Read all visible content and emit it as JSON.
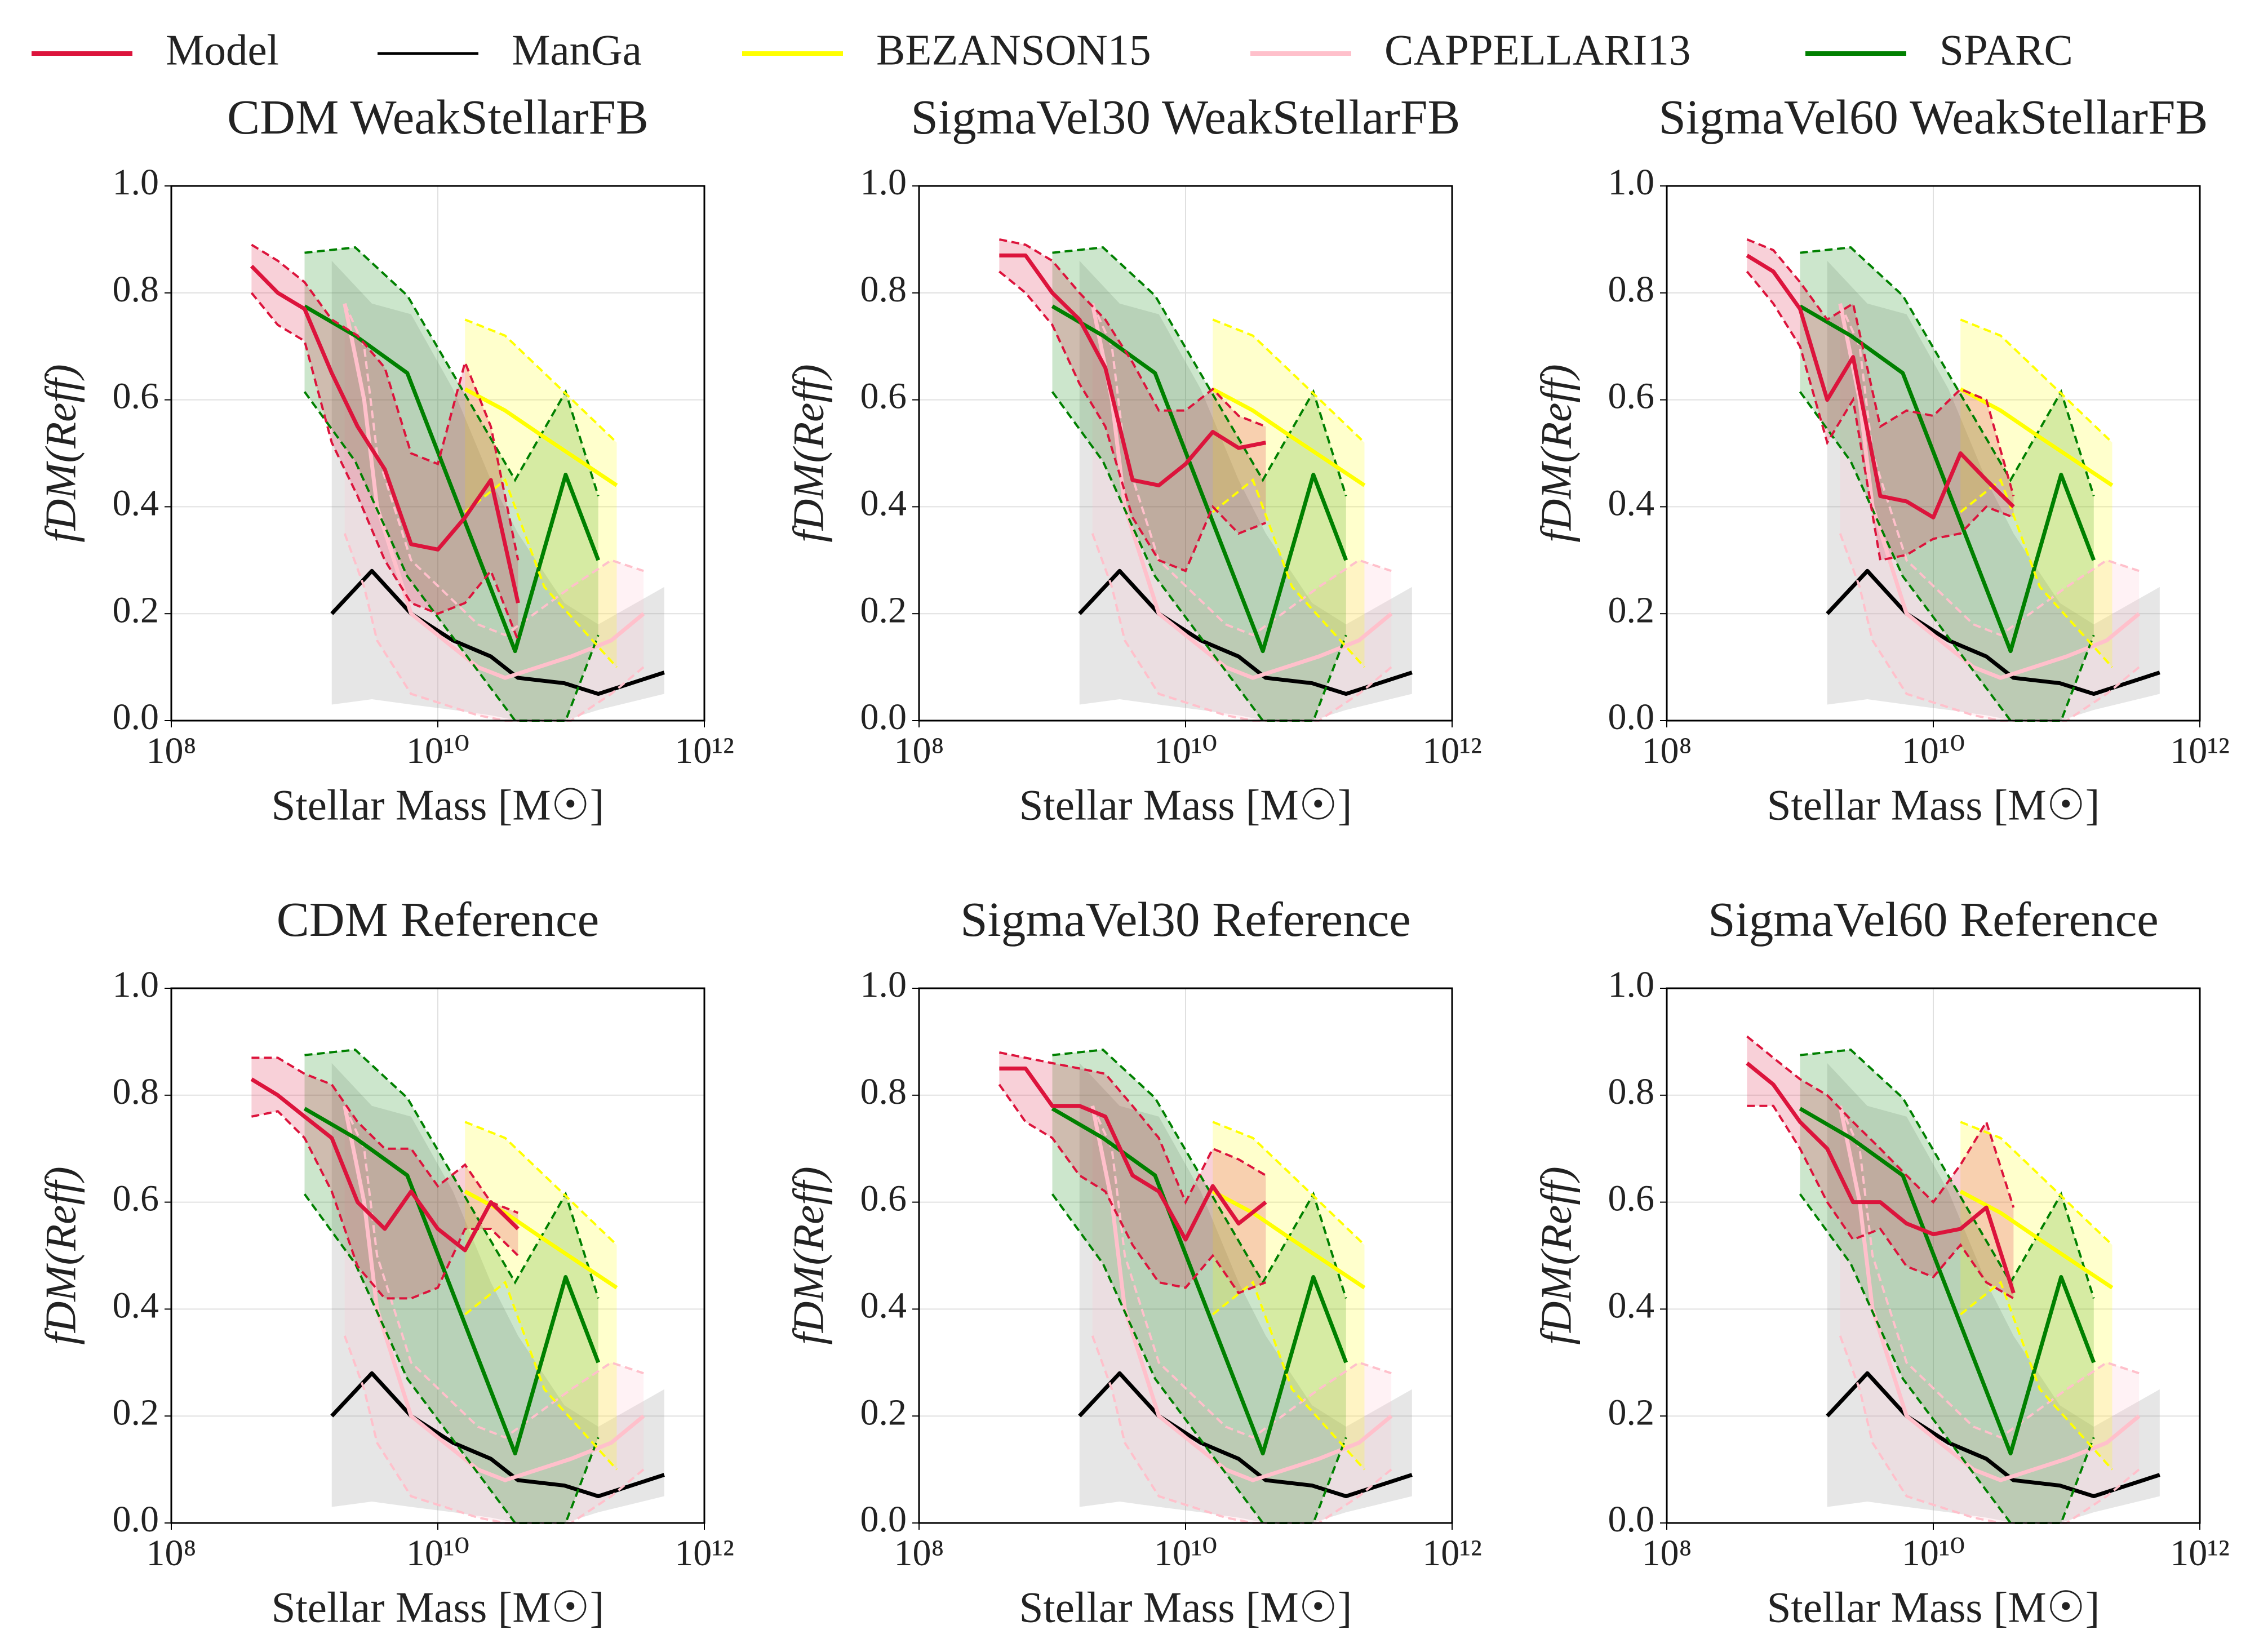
{
  "legend": [
    {
      "name": "Model",
      "color": "#dc143c"
    },
    {
      "name": "ManGa",
      "color": "#000000"
    },
    {
      "name": "BEZANSON15",
      "color": "#ffff00"
    },
    {
      "name": "CAPPELLARI13",
      "color": "#ffc0cb"
    },
    {
      "name": "SPARC",
      "color": "#008000"
    }
  ],
  "observations": [
    {
      "color": "#000000",
      "band_color": "#808080",
      "band_edges": "none",
      "x": [
        1600000000.0,
        3200000000.0,
        6300000000.0,
        13000000000.0,
        25000000000.0,
        40000000000.0,
        89000000000.0,
        160000000000.0,
        500000000000.0
      ],
      "values": [
        0.2,
        0.28,
        0.2,
        0.15,
        0.12,
        0.08,
        0.07,
        0.05,
        0.09
      ],
      "lower": [
        0.03,
        0.04,
        0.03,
        0.02,
        0.01,
        0.0,
        0.0,
        0.02,
        0.05
      ],
      "upper": [
        0.86,
        0.78,
        0.76,
        0.62,
        0.45,
        0.35,
        0.22,
        0.18,
        0.25
      ]
    },
    {
      "color": "#ffc0cb",
      "band_color": "#ffc0cb",
      "band_edges": "dashed",
      "x": [
        2000000000.0,
        2800000000.0,
        3500000000.0,
        6300000000.0,
        20000000000.0,
        32000000000.0,
        100000000000.0,
        200000000000.0,
        350000000000.0
      ],
      "values": [
        0.78,
        0.6,
        0.4,
        0.2,
        0.1,
        0.08,
        0.12,
        0.15,
        0.2
      ],
      "lower": [
        0.35,
        0.25,
        0.15,
        0.05,
        0.01,
        0.0,
        0.0,
        0.05,
        0.1
      ],
      "upper": [
        0.78,
        0.7,
        0.5,
        0.3,
        0.18,
        0.16,
        0.25,
        0.3,
        0.28
      ]
    },
    {
      "color": "#008000",
      "band_color": "#008000",
      "band_edges": "dashed",
      "x": [
        1000000000.0,
        2400000000.0,
        5900000000.0,
        38000000000.0,
        91000000000.0,
        160000000000.0
      ],
      "values": [
        0.775,
        0.72,
        0.65,
        0.13,
        0.46,
        0.3
      ],
      "lower": [
        0.615,
        0.485,
        0.27,
        0.0,
        0.0,
        0.16
      ],
      "upper": [
        0.875,
        0.885,
        0.795,
        0.45,
        0.615,
        0.42
      ]
    },
    {
      "color": "#ffff00",
      "band_color": "#ffff00",
      "band_edges": "dashed",
      "x": [
        16000000000.0,
        32000000000.0,
        63000000000.0,
        220000000000.0
      ],
      "values": [
        0.62,
        0.58,
        0.53,
        0.44
      ],
      "lower": [
        0.39,
        0.45,
        0.25,
        0.1
      ],
      "upper": [
        0.75,
        0.72,
        0.65,
        0.52
      ]
    }
  ],
  "chart_data": [
    {
      "type": "line",
      "title": "CDM WeakStellarFB",
      "xlabel": "Stellar Mass [M☉]",
      "ylabel": "fDM(Reff)",
      "log_x": true,
      "grid": true,
      "xlim": [
        100000000.0,
        1000000000000.0
      ],
      "xticks": [
        {
          "value": 100000000.0,
          "label": "10⁸"
        },
        {
          "value": 10000000000.0,
          "label": "10¹⁰"
        },
        {
          "value": 1000000000000.0,
          "label": "10¹²"
        }
      ],
      "ylim": [
        0,
        1
      ],
      "yticks": [
        {
          "value": 0,
          "label": "0.0"
        },
        0.2,
        0.4,
        0.6,
        0.8,
        {
          "value": 1,
          "label": "1.0"
        }
      ],
      "series": [
        {
          "color": "#dc143c",
          "band_color": "#dc143c",
          "band_edges": "dashed",
          "x": [
            400000000.0,
            630000000.0,
            1000000000.0,
            1600000000.0,
            2500000000.0,
            4000000000.0,
            6300000000.0,
            10000000000.0,
            16000000000.0,
            25000000000.0,
            40000000000.0
          ],
          "values": [
            0.85,
            0.8,
            0.77,
            0.65,
            0.55,
            0.47,
            0.33,
            0.32,
            0.38,
            0.45,
            0.22
          ],
          "lower": [
            0.8,
            0.74,
            0.71,
            0.52,
            0.42,
            0.3,
            0.22,
            0.2,
            0.22,
            0.28,
            0.15
          ],
          "upper": [
            0.89,
            0.86,
            0.82,
            0.75,
            0.72,
            0.66,
            0.5,
            0.48,
            0.67,
            0.55,
            0.3
          ]
        }
      ]
    },
    {
      "type": "line",
      "title": "SigmaVel30 WeakStellarFB",
      "xlabel": "Stellar Mass [M☉]",
      "ylabel": "fDM(Reff)",
      "log_x": true,
      "grid": true,
      "xlim": [
        100000000.0,
        1000000000000.0
      ],
      "xticks": [
        {
          "value": 100000000.0,
          "label": "10⁸"
        },
        {
          "value": 10000000000.0,
          "label": "10¹⁰"
        },
        {
          "value": 1000000000000.0,
          "label": "10¹²"
        }
      ],
      "ylim": [
        0,
        1
      ],
      "yticks": [
        {
          "value": 0,
          "label": "0.0"
        },
        0.2,
        0.4,
        0.6,
        0.8,
        {
          "value": 1,
          "label": "1.0"
        }
      ],
      "series": [
        {
          "color": "#dc143c",
          "band_color": "#dc143c",
          "band_edges": "dashed",
          "x": [
            400000000.0,
            630000000.0,
            1000000000.0,
            1600000000.0,
            2500000000.0,
            4000000000.0,
            6300000000.0,
            10000000000.0,
            16000000000.0,
            25000000000.0,
            40000000000.0
          ],
          "values": [
            0.87,
            0.87,
            0.8,
            0.75,
            0.66,
            0.45,
            0.44,
            0.48,
            0.54,
            0.51,
            0.52
          ],
          "lower": [
            0.84,
            0.8,
            0.74,
            0.63,
            0.55,
            0.38,
            0.3,
            0.28,
            0.4,
            0.35,
            0.37
          ],
          "upper": [
            0.9,
            0.89,
            0.86,
            0.8,
            0.75,
            0.67,
            0.58,
            0.58,
            0.62,
            0.57,
            0.55
          ]
        }
      ]
    },
    {
      "type": "line",
      "title": "SigmaVel60 WeakStellarFB",
      "xlabel": "Stellar Mass [M☉]",
      "ylabel": "fDM(Reff)",
      "log_x": true,
      "grid": true,
      "xlim": [
        100000000.0,
        1000000000000.0
      ],
      "xticks": [
        {
          "value": 100000000.0,
          "label": "10⁸"
        },
        {
          "value": 10000000000.0,
          "label": "10¹⁰"
        },
        {
          "value": 1000000000000.0,
          "label": "10¹²"
        }
      ],
      "ylim": [
        0,
        1
      ],
      "yticks": [
        {
          "value": 0,
          "label": "0.0"
        },
        0.2,
        0.4,
        0.6,
        0.8,
        {
          "value": 1,
          "label": "1.0"
        }
      ],
      "series": [
        {
          "color": "#dc143c",
          "band_color": "#dc143c",
          "band_edges": "dashed",
          "x": [
            400000000.0,
            630000000.0,
            1000000000.0,
            1600000000.0,
            2500000000.0,
            4000000000.0,
            6300000000.0,
            10000000000.0,
            16000000000.0,
            25000000000.0,
            40000000000.0
          ],
          "values": [
            0.87,
            0.84,
            0.77,
            0.6,
            0.68,
            0.42,
            0.41,
            0.38,
            0.5,
            0.45,
            0.4
          ],
          "lower": [
            0.84,
            0.78,
            0.7,
            0.52,
            0.6,
            0.3,
            0.31,
            0.34,
            0.35,
            0.4,
            0.38
          ],
          "upper": [
            0.9,
            0.88,
            0.82,
            0.75,
            0.78,
            0.55,
            0.58,
            0.57,
            0.62,
            0.6,
            0.42
          ]
        }
      ]
    },
    {
      "type": "line",
      "title": "CDM Reference",
      "xlabel": "Stellar Mass [M☉]",
      "ylabel": "fDM(Reff)",
      "log_x": true,
      "grid": true,
      "xlim": [
        100000000.0,
        1000000000000.0
      ],
      "xticks": [
        {
          "value": 100000000.0,
          "label": "10⁸"
        },
        {
          "value": 10000000000.0,
          "label": "10¹⁰"
        },
        {
          "value": 1000000000000.0,
          "label": "10¹²"
        }
      ],
      "ylim": [
        0,
        1
      ],
      "yticks": [
        {
          "value": 0,
          "label": "0.0"
        },
        0.2,
        0.4,
        0.6,
        0.8,
        {
          "value": 1,
          "label": "1.0"
        }
      ],
      "series": [
        {
          "color": "#dc143c",
          "band_color": "#dc143c",
          "band_edges": "dashed",
          "x": [
            400000000.0,
            630000000.0,
            1000000000.0,
            1600000000.0,
            2500000000.0,
            4000000000.0,
            6300000000.0,
            10000000000.0,
            16000000000.0,
            25000000000.0,
            40000000000.0
          ],
          "values": [
            0.83,
            0.8,
            0.76,
            0.72,
            0.6,
            0.55,
            0.62,
            0.55,
            0.51,
            0.6,
            0.55
          ],
          "lower": [
            0.76,
            0.77,
            0.72,
            0.62,
            0.48,
            0.42,
            0.42,
            0.44,
            0.55,
            0.55,
            0.5
          ],
          "upper": [
            0.87,
            0.87,
            0.84,
            0.82,
            0.75,
            0.7,
            0.7,
            0.63,
            0.67,
            0.6,
            0.58
          ]
        }
      ]
    },
    {
      "type": "line",
      "title": "SigmaVel30 Reference",
      "xlabel": "Stellar Mass [M☉]",
      "ylabel": "fDM(Reff)",
      "log_x": true,
      "grid": true,
      "xlim": [
        100000000.0,
        1000000000000.0
      ],
      "xticks": [
        {
          "value": 100000000.0,
          "label": "10⁸"
        },
        {
          "value": 10000000000.0,
          "label": "10¹⁰"
        },
        {
          "value": 1000000000000.0,
          "label": "10¹²"
        }
      ],
      "ylim": [
        0,
        1
      ],
      "yticks": [
        {
          "value": 0,
          "label": "0.0"
        },
        0.2,
        0.4,
        0.6,
        0.8,
        {
          "value": 1,
          "label": "1.0"
        }
      ],
      "series": [
        {
          "color": "#dc143c",
          "band_color": "#dc143c",
          "band_edges": "dashed",
          "x": [
            400000000.0,
            630000000.0,
            1000000000.0,
            1600000000.0,
            2500000000.0,
            4000000000.0,
            6300000000.0,
            10000000000.0,
            16000000000.0,
            25000000000.0,
            40000000000.0
          ],
          "values": [
            0.85,
            0.85,
            0.78,
            0.78,
            0.76,
            0.65,
            0.62,
            0.53,
            0.63,
            0.56,
            0.6
          ],
          "lower": [
            0.82,
            0.75,
            0.72,
            0.65,
            0.62,
            0.52,
            0.45,
            0.44,
            0.5,
            0.43,
            0.45
          ],
          "upper": [
            0.88,
            0.87,
            0.86,
            0.85,
            0.84,
            0.78,
            0.72,
            0.6,
            0.7,
            0.68,
            0.65
          ]
        }
      ]
    },
    {
      "type": "line",
      "title": "SigmaVel60 Reference",
      "xlabel": "Stellar Mass [M☉]",
      "ylabel": "fDM(Reff)",
      "log_x": true,
      "grid": true,
      "xlim": [
        100000000.0,
        1000000000000.0
      ],
      "xticks": [
        {
          "value": 100000000.0,
          "label": "10⁸"
        },
        {
          "value": 10000000000.0,
          "label": "10¹⁰"
        },
        {
          "value": 1000000000000.0,
          "label": "10¹²"
        }
      ],
      "ylim": [
        0,
        1
      ],
      "yticks": [
        {
          "value": 0,
          "label": "0.0"
        },
        0.2,
        0.4,
        0.6,
        0.8,
        {
          "value": 1,
          "label": "1.0"
        }
      ],
      "series": [
        {
          "color": "#dc143c",
          "band_color": "#dc143c",
          "band_edges": "dashed",
          "x": [
            400000000.0,
            630000000.0,
            1000000000.0,
            1600000000.0,
            2500000000.0,
            4000000000.0,
            6300000000.0,
            10000000000.0,
            16000000000.0,
            25000000000.0,
            40000000000.0
          ],
          "values": [
            0.86,
            0.82,
            0.75,
            0.7,
            0.6,
            0.6,
            0.56,
            0.54,
            0.55,
            0.59,
            0.43
          ],
          "lower": [
            0.78,
            0.78,
            0.7,
            0.6,
            0.53,
            0.55,
            0.48,
            0.46,
            0.52,
            0.45,
            0.42
          ],
          "upper": [
            0.91,
            0.87,
            0.83,
            0.8,
            0.75,
            0.7,
            0.65,
            0.6,
            0.67,
            0.75,
            0.59
          ]
        }
      ]
    }
  ]
}
